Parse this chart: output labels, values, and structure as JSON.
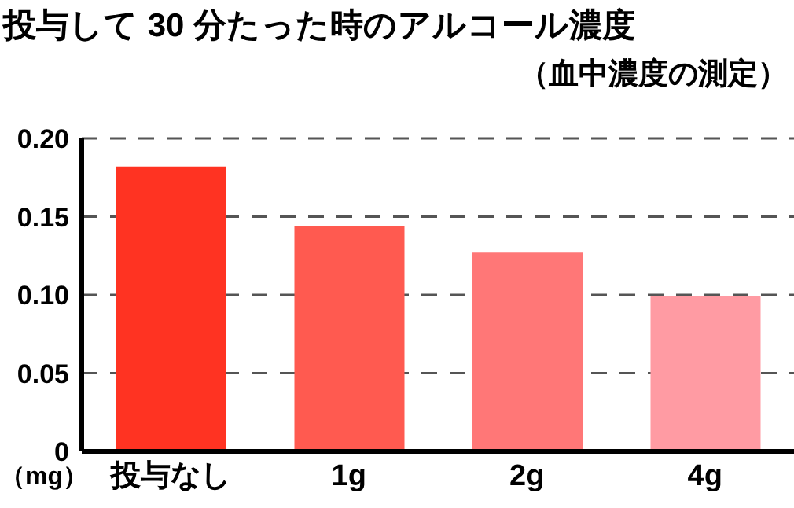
{
  "chart_data": {
    "type": "bar",
    "title": "投与して 30 分たった時のアルコール濃度",
    "subtitle": "（血中濃度の測定）",
    "ylabel": "（mg）",
    "categories": [
      "投与なし",
      "1g",
      "2g",
      "4g"
    ],
    "values": [
      0.182,
      0.144,
      0.127,
      0.099
    ],
    "colors": [
      "#ff3322",
      "#ff5a50",
      "#ff7777",
      "#ff9ba3"
    ],
    "ylim": [
      0,
      0.2
    ],
    "yticks": [
      0,
      0.05,
      {
        "value": 0.1,
        "label": "0.10"
      },
      0.15,
      {
        "value": 0.2,
        "label": "0.20"
      }
    ],
    "grid": "y",
    "line_style": "dashed"
  }
}
